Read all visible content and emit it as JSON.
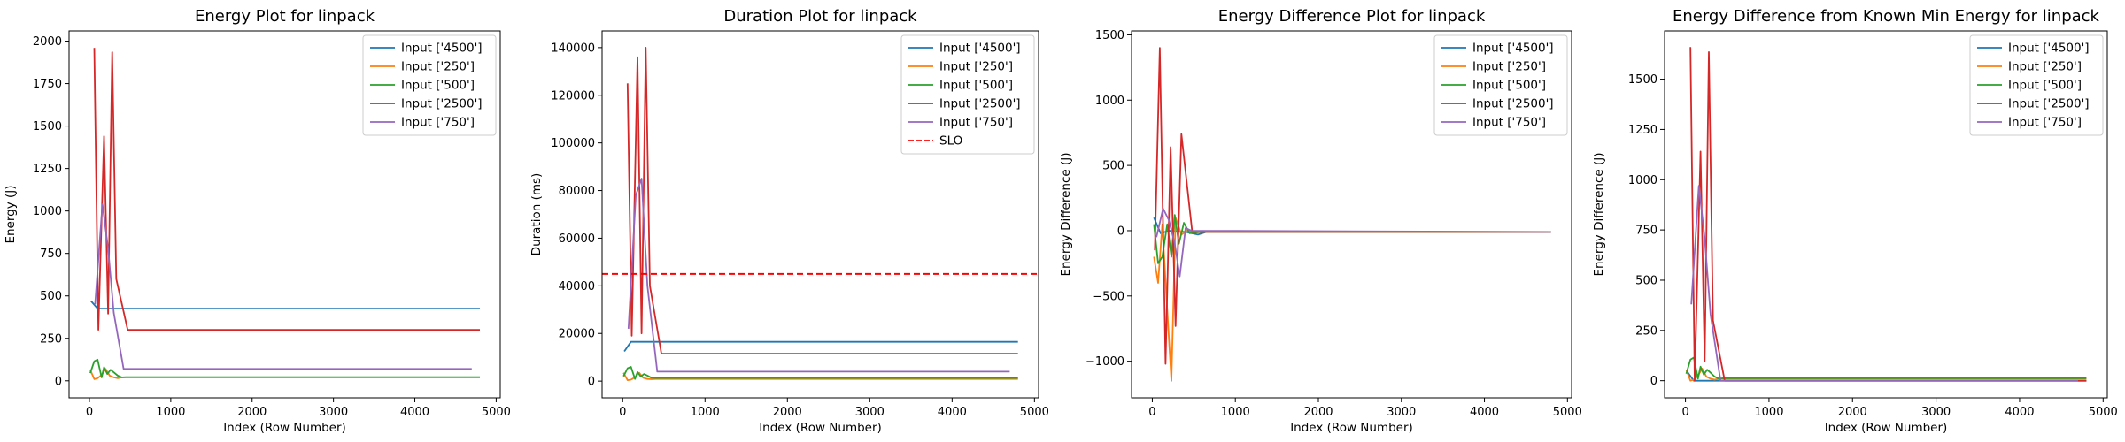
{
  "chart_data": [
    {
      "type": "line",
      "title": "Energy Plot for linpack",
      "xlabel": "Index (Row Number)",
      "ylabel": "Energy (J)",
      "xlim": [
        -250,
        5050
      ],
      "ylim": [
        -100,
        2060
      ],
      "xticks": [
        0,
        1000,
        2000,
        3000,
        4000,
        5000
      ],
      "yticks": [
        0,
        250,
        500,
        750,
        1000,
        1250,
        1500,
        1750,
        2000
      ],
      "legend_position": "top-right",
      "series": [
        {
          "name": "Input ['4500']",
          "color": "#1f77b4",
          "x": [
            20,
            100,
            4800
          ],
          "y": [
            470,
            425,
            425
          ]
        },
        {
          "name": "Input ['250']",
          "color": "#ff7f0e",
          "x": [
            10,
            60,
            100,
            150,
            200,
            250,
            300,
            350,
            400,
            450,
            4800
          ],
          "y": [
            65,
            10,
            15,
            35,
            70,
            30,
            20,
            15,
            20,
            20,
            20
          ]
        },
        {
          "name": "Input ['500']",
          "color": "#2ca02c",
          "x": [
            10,
            60,
            100,
            150,
            180,
            220,
            260,
            300,
            350,
            400,
            450,
            4800
          ],
          "y": [
            45,
            115,
            125,
            20,
            80,
            40,
            65,
            50,
            30,
            20,
            22,
            22
          ]
        },
        {
          "name": "Input ['2500']",
          "color": "#d62728",
          "x": [
            60,
            110,
            180,
            230,
            280,
            330,
            470,
            4800
          ],
          "y": [
            1960,
            300,
            1440,
            395,
            1935,
            600,
            300,
            300
          ]
        },
        {
          "name": "Input ['750']",
          "color": "#9467bd",
          "x": [
            70,
            160,
            230,
            300,
            420,
            4700
          ],
          "y": [
            450,
            1040,
            780,
            400,
            70,
            70
          ]
        }
      ]
    },
    {
      "type": "line",
      "title": "Duration Plot for linpack",
      "xlabel": "Index (Row Number)",
      "ylabel": "Duration (ms)",
      "xlim": [
        -250,
        5050
      ],
      "ylim": [
        -7000,
        147000
      ],
      "xticks": [
        0,
        1000,
        2000,
        3000,
        4000,
        5000
      ],
      "yticks": [
        0,
        20000,
        40000,
        60000,
        80000,
        100000,
        120000,
        140000
      ],
      "legend_position": "top-right",
      "hline": {
        "name": "SLO",
        "y": 45000,
        "color": "#ff0000"
      },
      "series": [
        {
          "name": "Input ['4500']",
          "color": "#1f77b4",
          "x": [
            20,
            100,
            4800
          ],
          "y": [
            12500,
            16500,
            16500
          ]
        },
        {
          "name": "Input ['250']",
          "color": "#ff7f0e",
          "x": [
            10,
            60,
            100,
            150,
            200,
            250,
            300,
            350,
            400,
            450,
            4800
          ],
          "y": [
            3500,
            400,
            600,
            1600,
            3500,
            1400,
            900,
            800,
            900,
            900,
            900
          ]
        },
        {
          "name": "Input ['500']",
          "color": "#2ca02c",
          "x": [
            10,
            60,
            100,
            150,
            180,
            220,
            260,
            300,
            350,
            400,
            450,
            4800
          ],
          "y": [
            2000,
            5400,
            6000,
            900,
            3800,
            1900,
            3000,
            2300,
            1400,
            1300,
            1300,
            1300
          ]
        },
        {
          "name": "Input ['2500']",
          "color": "#d62728",
          "x": [
            60,
            110,
            180,
            230,
            280,
            330,
            470,
            4800
          ],
          "y": [
            125000,
            19000,
            136000,
            20000,
            140000,
            40000,
            11500,
            11500
          ]
        },
        {
          "name": "Input ['750']",
          "color": "#9467bd",
          "x": [
            70,
            160,
            230,
            300,
            420,
            4700
          ],
          "y": [
            22000,
            78000,
            85000,
            40000,
            4000,
            4000
          ]
        }
      ]
    },
    {
      "type": "line",
      "title": "Energy Difference Plot for linpack",
      "xlabel": "Index (Row Number)",
      "ylabel": "Energy Difference (J)",
      "xlim": [
        -250,
        5050
      ],
      "ylim": [
        -1280,
        1530
      ],
      "xticks": [
        0,
        1000,
        2000,
        3000,
        4000,
        5000
      ],
      "yticks": [
        -1000,
        -500,
        0,
        500,
        1000,
        1500
      ],
      "legend_position": "top-right",
      "series": [
        {
          "name": "Input ['4500']",
          "color": "#1f77b4",
          "x": [
            20,
            100,
            200,
            400,
            550,
            650,
            4800
          ],
          "y": [
            100,
            -20,
            0,
            -10,
            -30,
            -10,
            -10
          ]
        },
        {
          "name": "Input ['250']",
          "color": "#ff7f0e",
          "x": [
            20,
            70,
            120,
            170,
            230,
            280,
            350,
            420,
            600,
            4800
          ],
          "y": [
            -200,
            -400,
            50,
            -500,
            -1150,
            100,
            -30,
            0,
            -10,
            -10
          ]
        },
        {
          "name": "Input ['500']",
          "color": "#2ca02c",
          "x": [
            20,
            70,
            120,
            180,
            230,
            270,
            320,
            380,
            450,
            600,
            4800
          ],
          "y": [
            50,
            -250,
            -200,
            50,
            -200,
            120,
            -100,
            60,
            -20,
            -10,
            -10
          ]
        },
        {
          "name": "Input ['2500']",
          "color": "#d62728",
          "x": [
            30,
            90,
            160,
            220,
            280,
            350,
            480,
            600,
            4800
          ],
          "y": [
            -150,
            1400,
            -1020,
            640,
            -730,
            740,
            -10,
            -10,
            -10
          ]
        },
        {
          "name": "Input ['750']",
          "color": "#9467bd",
          "x": [
            50,
            130,
            200,
            270,
            330,
            400,
            470,
            4800
          ],
          "y": [
            -50,
            170,
            80,
            -100,
            -350,
            20,
            0,
            -10
          ]
        }
      ]
    },
    {
      "type": "line",
      "title": "Energy Difference from Known Min Energy for linpack",
      "xlabel": "Index (Row Number)",
      "ylabel": "Energy Difference (J)",
      "xlim": [
        -250,
        5050
      ],
      "ylim": [
        -85,
        1740
      ],
      "xticks": [
        0,
        1000,
        2000,
        3000,
        4000,
        5000
      ],
      "yticks": [
        0,
        250,
        500,
        750,
        1000,
        1250,
        1500
      ],
      "legend_position": "top-right",
      "series": [
        {
          "name": "Input ['4500']",
          "color": "#1f77b4",
          "x": [
            20,
            100,
            4800
          ],
          "y": [
            45,
            0,
            0
          ]
        },
        {
          "name": "Input ['250']",
          "color": "#ff7f0e",
          "x": [
            10,
            60,
            100,
            150,
            200,
            250,
            300,
            350,
            400,
            450,
            4800
          ],
          "y": [
            55,
            0,
            5,
            25,
            60,
            20,
            10,
            5,
            10,
            10,
            10
          ]
        },
        {
          "name": "Input ['500']",
          "color": "#2ca02c",
          "x": [
            10,
            60,
            100,
            150,
            180,
            220,
            260,
            300,
            350,
            400,
            450,
            4800
          ],
          "y": [
            35,
            105,
            115,
            10,
            70,
            30,
            55,
            40,
            20,
            10,
            12,
            12
          ]
        },
        {
          "name": "Input ['2500']",
          "color": "#d62728",
          "x": [
            60,
            110,
            180,
            230,
            280,
            330,
            470,
            4800
          ],
          "y": [
            1660,
            0,
            1140,
            95,
            1635,
            300,
            0,
            0
          ]
        },
        {
          "name": "Input ['750']",
          "color": "#9467bd",
          "x": [
            70,
            160,
            230,
            300,
            420,
            4700
          ],
          "y": [
            380,
            970,
            710,
            330,
            0,
            0
          ]
        }
      ]
    }
  ]
}
